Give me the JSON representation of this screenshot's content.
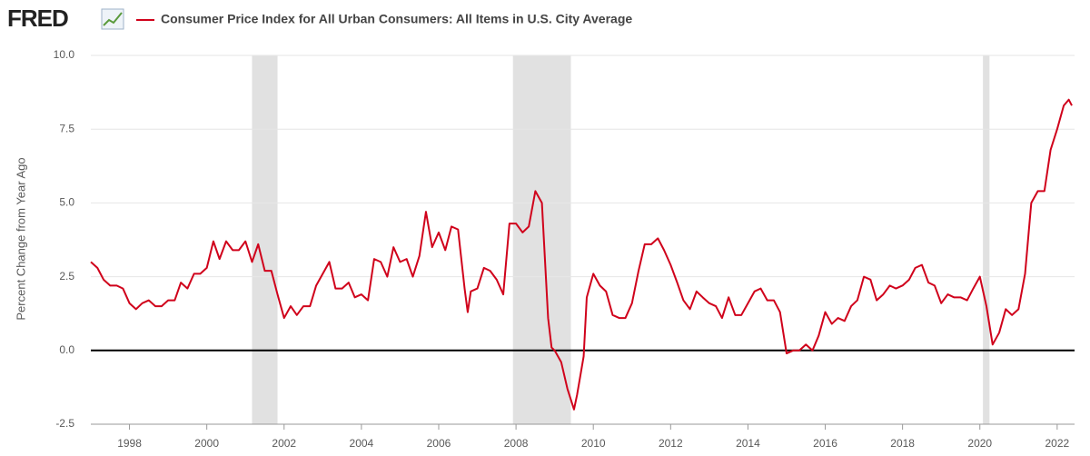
{
  "chart_data": {
    "type": "line",
    "logo": "FRED",
    "title": "Consumer Price Index for All Urban Consumers: All Items in U.S. City Average",
    "y_label": "Percent Change from Year Ago",
    "xlim": [
      1997,
      2022.45
    ],
    "xticks": [
      1998,
      2000,
      2002,
      2004,
      2006,
      2008,
      2010,
      2012,
      2014,
      2016,
      2018,
      2020,
      2022
    ],
    "ylim": [
      -2.5,
      10
    ],
    "yticks": [
      {
        "value": -2.5,
        "label": "-2.5"
      },
      {
        "value": 0,
        "label": "0.0"
      },
      {
        "value": 2.5,
        "label": "2.5"
      },
      {
        "value": 5,
        "label": "5.0"
      },
      {
        "value": 7.5,
        "label": "7.5"
      },
      {
        "value": 10,
        "label": "10.0"
      }
    ],
    "grid": true,
    "recessions": [
      [
        2001.17,
        2001.83
      ],
      [
        2007.92,
        2009.42
      ],
      [
        2020.08,
        2020.25
      ]
    ],
    "series": [
      {
        "name": "Consumer Price Index for All Urban Consumers: All Items in U.S. City Average",
        "color": "#d0021b",
        "x": [
          1997.0,
          1997.17,
          1997.33,
          1997.5,
          1997.67,
          1997.83,
          1998.0,
          1998.17,
          1998.33,
          1998.5,
          1998.67,
          1998.83,
          1999.0,
          1999.17,
          1999.33,
          1999.5,
          1999.67,
          1999.83,
          2000.0,
          2000.17,
          2000.33,
          2000.5,
          2000.67,
          2000.83,
          2001.0,
          2001.17,
          2001.33,
          2001.5,
          2001.67,
          2001.83,
          2002.0,
          2002.17,
          2002.33,
          2002.5,
          2002.67,
          2002.83,
          2003.0,
          2003.17,
          2003.33,
          2003.5,
          2003.67,
          2003.83,
          2004.0,
          2004.17,
          2004.33,
          2004.5,
          2004.67,
          2004.83,
          2005.0,
          2005.17,
          2005.33,
          2005.5,
          2005.67,
          2005.83,
          2006.0,
          2006.17,
          2006.33,
          2006.5,
          2006.67,
          2006.75,
          2006.83,
          2007.0,
          2007.17,
          2007.33,
          2007.5,
          2007.67,
          2007.83,
          2008.0,
          2008.17,
          2008.33,
          2008.5,
          2008.67,
          2008.83,
          2008.92,
          2009.0,
          2009.17,
          2009.33,
          2009.5,
          2009.58,
          2009.75,
          2009.83,
          2010.0,
          2010.17,
          2010.33,
          2010.5,
          2010.67,
          2010.83,
          2011.0,
          2011.17,
          2011.33,
          2011.5,
          2011.67,
          2011.83,
          2012.0,
          2012.17,
          2012.33,
          2012.5,
          2012.67,
          2012.83,
          2013.0,
          2013.17,
          2013.33,
          2013.5,
          2013.67,
          2013.83,
          2014.0,
          2014.17,
          2014.33,
          2014.5,
          2014.67,
          2014.83,
          2015.0,
          2015.17,
          2015.33,
          2015.5,
          2015.67,
          2015.83,
          2016.0,
          2016.17,
          2016.33,
          2016.5,
          2016.67,
          2016.83,
          2017.0,
          2017.17,
          2017.33,
          2017.5,
          2017.67,
          2017.83,
          2018.0,
          2018.17,
          2018.33,
          2018.5,
          2018.67,
          2018.83,
          2019.0,
          2019.17,
          2019.33,
          2019.5,
          2019.67,
          2019.83,
          2020.0,
          2020.17,
          2020.33,
          2020.5,
          2020.67,
          2020.83,
          2021.0,
          2021.17,
          2021.33,
          2021.5,
          2021.67,
          2021.83,
          2022.0,
          2022.17,
          2022.3,
          2022.38
        ],
        "values": [
          3.0,
          2.8,
          2.4,
          2.2,
          2.2,
          2.1,
          1.6,
          1.4,
          1.6,
          1.7,
          1.5,
          1.5,
          1.7,
          1.7,
          2.3,
          2.1,
          2.6,
          2.6,
          2.8,
          3.7,
          3.1,
          3.7,
          3.4,
          3.4,
          3.7,
          3.0,
          3.6,
          2.7,
          2.7,
          1.9,
          1.1,
          1.5,
          1.2,
          1.5,
          1.5,
          2.2,
          2.6,
          3.0,
          2.1,
          2.1,
          2.3,
          1.8,
          1.9,
          1.7,
          3.1,
          3.0,
          2.5,
          3.5,
          3.0,
          3.1,
          2.5,
          3.2,
          4.7,
          3.5,
          4.0,
          3.4,
          4.2,
          4.1,
          2.1,
          1.3,
          2.0,
          2.1,
          2.8,
          2.7,
          2.4,
          1.9,
          4.3,
          4.3,
          4.0,
          4.2,
          5.4,
          5.0,
          1.1,
          0.1,
          0.0,
          -0.4,
          -1.3,
          -2.0,
          -1.5,
          -0.2,
          1.8,
          2.6,
          2.2,
          2.0,
          1.2,
          1.1,
          1.1,
          1.6,
          2.7,
          3.6,
          3.6,
          3.8,
          3.4,
          2.9,
          2.3,
          1.7,
          1.4,
          2.0,
          1.8,
          1.6,
          1.5,
          1.1,
          1.8,
          1.2,
          1.2,
          1.6,
          2.0,
          2.1,
          1.7,
          1.7,
          1.3,
          -0.1,
          0.0,
          0.0,
          0.2,
          0.0,
          0.5,
          1.3,
          0.9,
          1.1,
          1.0,
          1.5,
          1.7,
          2.5,
          2.4,
          1.7,
          1.9,
          2.2,
          2.1,
          2.2,
          2.4,
          2.8,
          2.9,
          2.3,
          2.2,
          1.6,
          1.9,
          1.8,
          1.8,
          1.7,
          2.1,
          2.5,
          1.5,
          0.2,
          0.6,
          1.4,
          1.2,
          1.4,
          2.6,
          5.0,
          5.4,
          5.4,
          6.8,
          7.5,
          8.3,
          8.5,
          8.3
        ]
      }
    ]
  }
}
